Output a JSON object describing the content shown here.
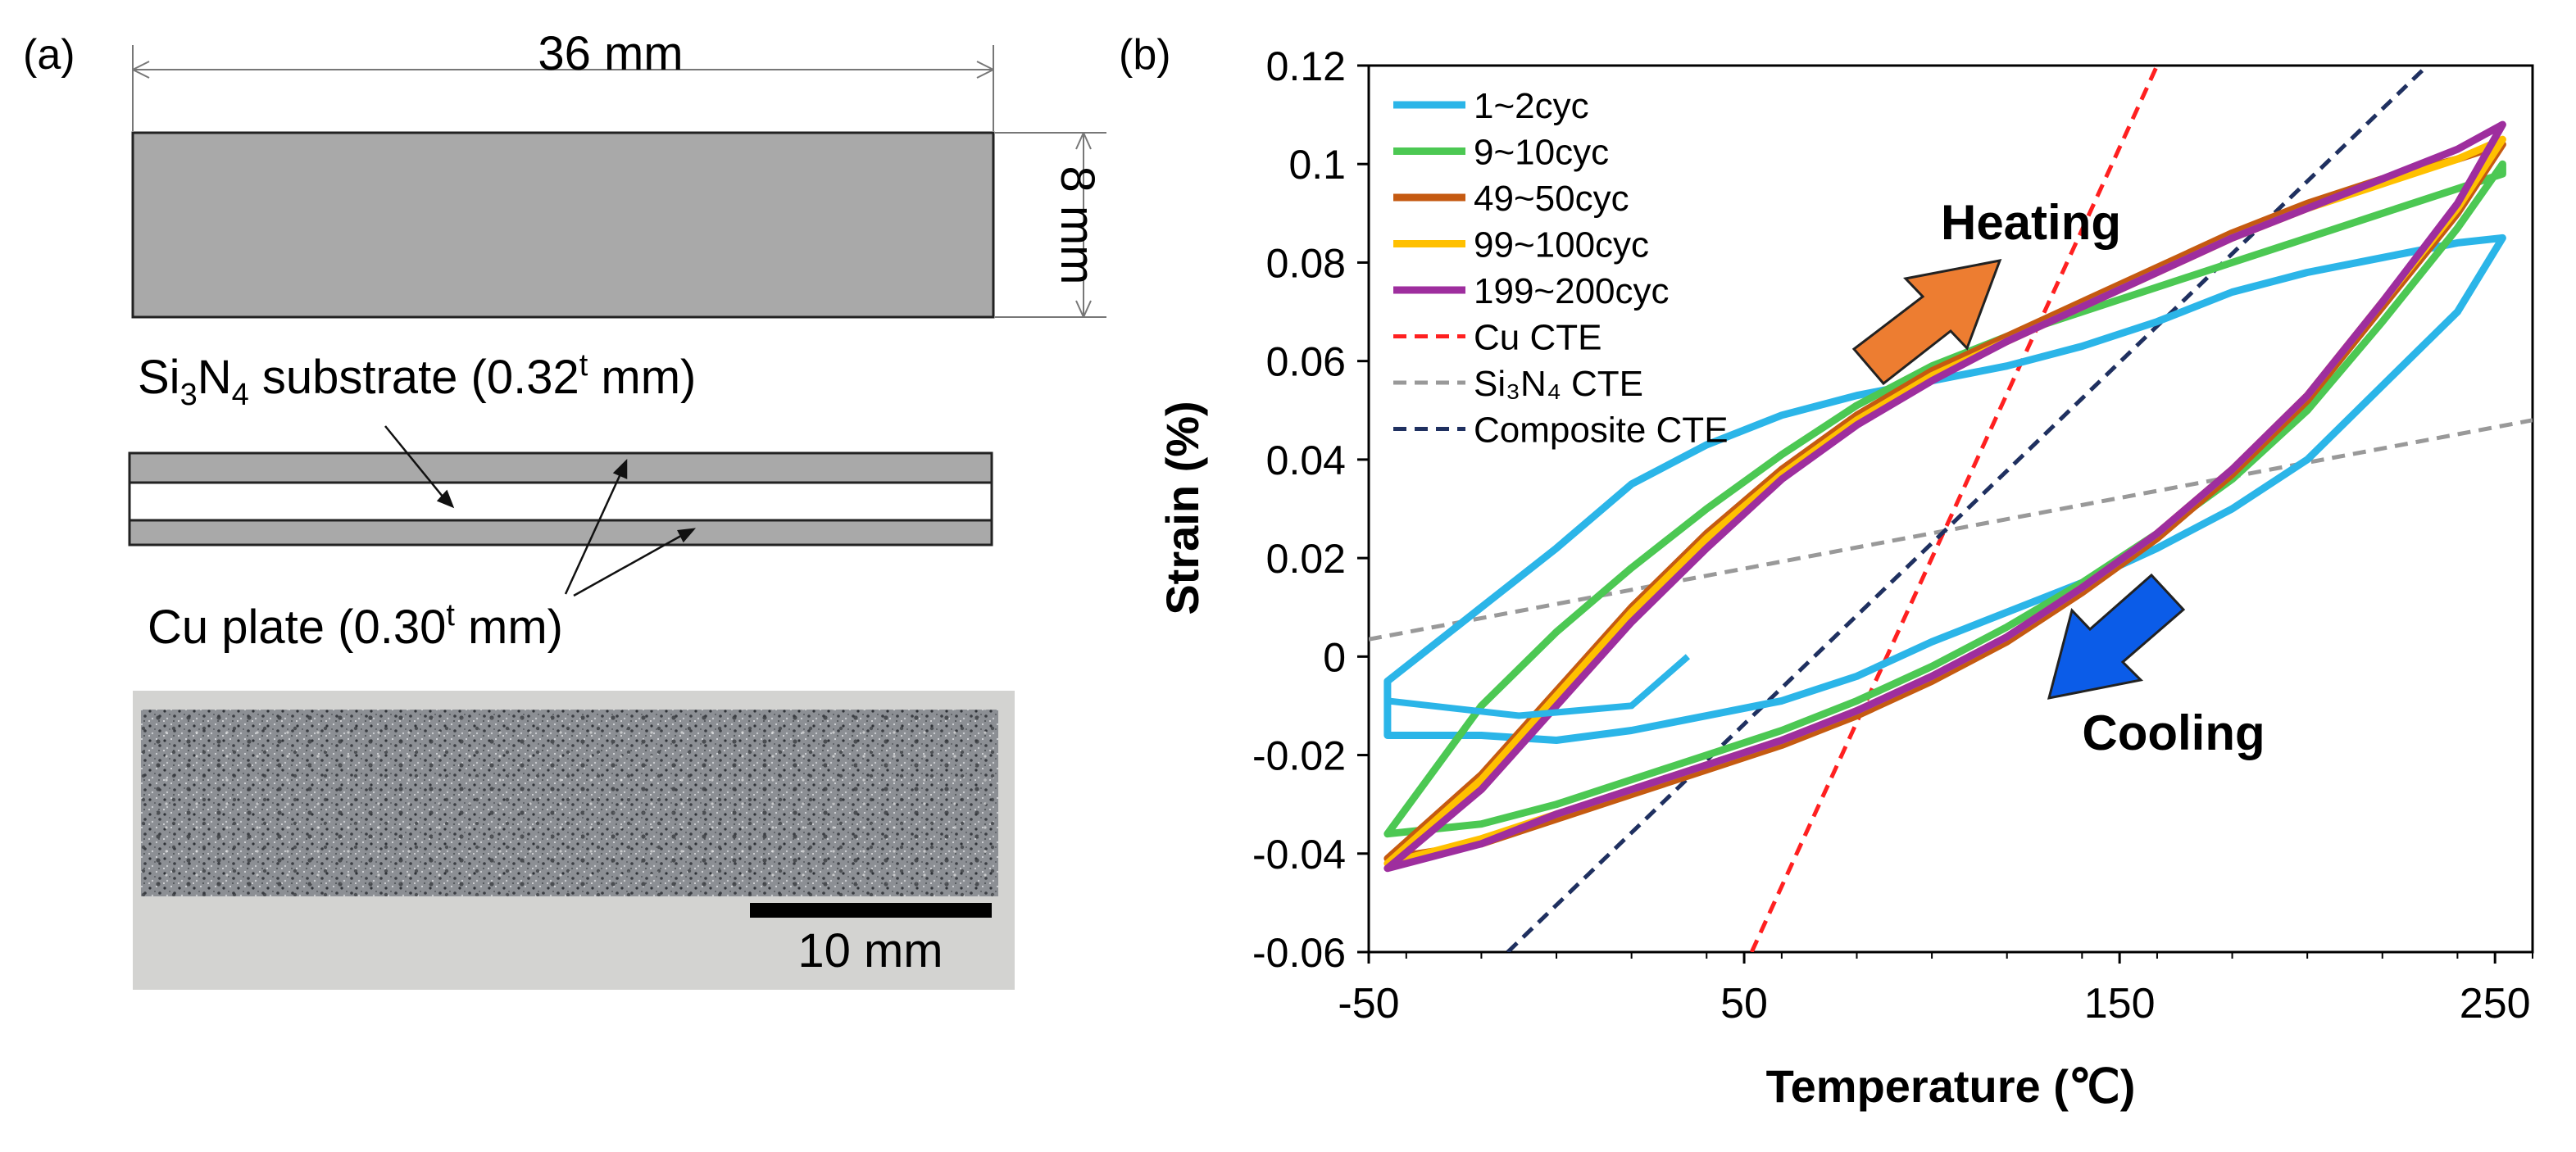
{
  "panel_a": {
    "label": "(a)",
    "width_dim": "36 mm",
    "height_dim": "8 mm",
    "substrate_label": {
      "prefix": "Si",
      "sub1": "3",
      "mid": "N",
      "sub2": "4",
      "rest": " substrate (0.32",
      "sup": "t",
      "end": " mm)"
    },
    "cu_label": {
      "prefix": "Cu plate (0.30",
      "sup": "t",
      "end": " mm)"
    },
    "scale_bar": "10 mm"
  },
  "panel_b": {
    "label": "(b)",
    "heating": "Heating",
    "cooling": "Cooling",
    "heating_color": "#ED7D31",
    "cooling_color": "#0B5CE8"
  },
  "chart_data": {
    "type": "line",
    "title": "",
    "xlabel": "Temperature (℃)",
    "ylabel": "Strain (%)",
    "xlim": [
      -50,
      260
    ],
    "ylim": [
      -0.06,
      0.12
    ],
    "xticks": [
      "-50",
      "50",
      "150",
      "250"
    ],
    "yticks": [
      "0.12",
      "0.1",
      "0.08",
      "0.06",
      "0.04",
      "0.02",
      "0",
      "-0.02",
      "-0.04",
      "-0.06"
    ],
    "grid": false,
    "legend_position": "top-left",
    "series": [
      {
        "name": "1~2cyc",
        "color": "#2BB5E8",
        "style": "solid",
        "heating": [
          [
            -45,
            -0.005
          ],
          [
            -20,
            0.01
          ],
          [
            0,
            0.022
          ],
          [
            20,
            0.035
          ],
          [
            40,
            0.043
          ],
          [
            60,
            0.049
          ],
          [
            80,
            0.053
          ],
          [
            100,
            0.056
          ],
          [
            120,
            0.059
          ],
          [
            140,
            0.063
          ],
          [
            160,
            0.068
          ],
          [
            180,
            0.074
          ],
          [
            200,
            0.078
          ],
          [
            220,
            0.081
          ],
          [
            240,
            0.084
          ],
          [
            252,
            0.085
          ]
        ],
        "cooling": [
          [
            252,
            0.085
          ],
          [
            240,
            0.07
          ],
          [
            220,
            0.055
          ],
          [
            200,
            0.04
          ],
          [
            180,
            0.03
          ],
          [
            160,
            0.022
          ],
          [
            140,
            0.015
          ],
          [
            120,
            0.009
          ],
          [
            100,
            0.003
          ],
          [
            80,
            -0.004
          ],
          [
            60,
            -0.009
          ],
          [
            40,
            -0.012
          ],
          [
            20,
            -0.015
          ],
          [
            0,
            -0.017
          ],
          [
            -20,
            -0.016
          ],
          [
            -45,
            -0.016
          ]
        ]
      },
      {
        "name": "9~10cyc",
        "color": "#4CC853",
        "style": "solid",
        "heating": [
          [
            -45,
            -0.036
          ],
          [
            -20,
            -0.01
          ],
          [
            0,
            0.005
          ],
          [
            20,
            0.018
          ],
          [
            40,
            0.03
          ],
          [
            60,
            0.041
          ],
          [
            80,
            0.051
          ],
          [
            100,
            0.059
          ],
          [
            120,
            0.065
          ],
          [
            140,
            0.07
          ],
          [
            160,
            0.075
          ],
          [
            180,
            0.08
          ],
          [
            200,
            0.085
          ],
          [
            220,
            0.09
          ],
          [
            240,
            0.095
          ],
          [
            252,
            0.098
          ]
        ],
        "cooling": [
          [
            252,
            0.1
          ],
          [
            240,
            0.087
          ],
          [
            220,
            0.068
          ],
          [
            200,
            0.05
          ],
          [
            180,
            0.036
          ],
          [
            160,
            0.025
          ],
          [
            140,
            0.015
          ],
          [
            120,
            0.006
          ],
          [
            100,
            -0.002
          ],
          [
            80,
            -0.009
          ],
          [
            60,
            -0.015
          ],
          [
            40,
            -0.02
          ],
          [
            20,
            -0.025
          ],
          [
            0,
            -0.03
          ],
          [
            -20,
            -0.034
          ],
          [
            -45,
            -0.036
          ]
        ]
      },
      {
        "name": "49~50cyc",
        "color": "#C55A11",
        "style": "solid",
        "heating": [
          [
            -45,
            -0.041
          ],
          [
            -20,
            -0.024
          ],
          [
            0,
            -0.007
          ],
          [
            20,
            0.01
          ],
          [
            40,
            0.025
          ],
          [
            60,
            0.038
          ],
          [
            80,
            0.049
          ],
          [
            100,
            0.058
          ],
          [
            120,
            0.065
          ],
          [
            140,
            0.072
          ],
          [
            160,
            0.079
          ],
          [
            180,
            0.086
          ],
          [
            200,
            0.092
          ],
          [
            220,
            0.097
          ],
          [
            240,
            0.101
          ],
          [
            252,
            0.104
          ]
        ],
        "cooling": [
          [
            252,
            0.104
          ],
          [
            240,
            0.09
          ],
          [
            220,
            0.071
          ],
          [
            200,
            0.052
          ],
          [
            180,
            0.037
          ],
          [
            160,
            0.024
          ],
          [
            140,
            0.013
          ],
          [
            120,
            0.003
          ],
          [
            100,
            -0.005
          ],
          [
            80,
            -0.012
          ],
          [
            60,
            -0.018
          ],
          [
            40,
            -0.023
          ],
          [
            20,
            -0.028
          ],
          [
            0,
            -0.033
          ],
          [
            -20,
            -0.038
          ],
          [
            -45,
            -0.041
          ]
        ]
      },
      {
        "name": "99~100cyc",
        "color": "#FFC000",
        "style": "solid",
        "heating": [
          [
            -45,
            -0.042
          ],
          [
            -20,
            -0.025
          ],
          [
            0,
            -0.008
          ],
          [
            20,
            0.009
          ],
          [
            40,
            0.024
          ],
          [
            60,
            0.037
          ],
          [
            80,
            0.048
          ],
          [
            100,
            0.057
          ],
          [
            120,
            0.064
          ],
          [
            140,
            0.071
          ],
          [
            160,
            0.078
          ],
          [
            180,
            0.085
          ],
          [
            200,
            0.091
          ],
          [
            220,
            0.096
          ],
          [
            240,
            0.101
          ],
          [
            252,
            0.105
          ]
        ],
        "cooling": [
          [
            252,
            0.105
          ],
          [
            240,
            0.091
          ],
          [
            220,
            0.072
          ],
          [
            200,
            0.053
          ],
          [
            180,
            0.038
          ],
          [
            160,
            0.025
          ],
          [
            140,
            0.014
          ],
          [
            120,
            0.004
          ],
          [
            100,
            -0.004
          ],
          [
            80,
            -0.011
          ],
          [
            60,
            -0.017
          ],
          [
            40,
            -0.022
          ],
          [
            20,
            -0.027
          ],
          [
            0,
            -0.032
          ],
          [
            -20,
            -0.037
          ],
          [
            -45,
            -0.042
          ]
        ]
      },
      {
        "name": "199~200cyc",
        "color": "#9E2E9E",
        "style": "solid",
        "heating": [
          [
            -45,
            -0.043
          ],
          [
            -20,
            -0.027
          ],
          [
            0,
            -0.01
          ],
          [
            20,
            0.007
          ],
          [
            40,
            0.022
          ],
          [
            60,
            0.036
          ],
          [
            80,
            0.047
          ],
          [
            100,
            0.056
          ],
          [
            120,
            0.064
          ],
          [
            140,
            0.071
          ],
          [
            160,
            0.078
          ],
          [
            180,
            0.085
          ],
          [
            200,
            0.091
          ],
          [
            220,
            0.097
          ],
          [
            240,
            0.103
          ],
          [
            252,
            0.108
          ]
        ],
        "cooling": [
          [
            252,
            0.108
          ],
          [
            240,
            0.092
          ],
          [
            220,
            0.072
          ],
          [
            200,
            0.053
          ],
          [
            180,
            0.038
          ],
          [
            160,
            0.025
          ],
          [
            140,
            0.014
          ],
          [
            120,
            0.004
          ],
          [
            100,
            -0.004
          ],
          [
            80,
            -0.011
          ],
          [
            60,
            -0.017
          ],
          [
            40,
            -0.022
          ],
          [
            20,
            -0.027
          ],
          [
            0,
            -0.032
          ],
          [
            -20,
            -0.038
          ],
          [
            -45,
            -0.043
          ]
        ]
      },
      {
        "name": "Cu CTE",
        "color": "#FF2020",
        "style": "dashed",
        "points": [
          [
            52,
            -0.06
          ],
          [
            160,
            0.12
          ]
        ]
      },
      {
        "name": "Si₃N₄ CTE",
        "color": "#999999",
        "style": "dashed",
        "points": [
          [
            -50,
            0.0035
          ],
          [
            260,
            0.048
          ]
        ]
      },
      {
        "name": "Composite CTE",
        "color": "#1F3060",
        "style": "dashed",
        "points": [
          [
            -13,
            -0.06
          ],
          [
            232,
            0.12
          ]
        ]
      }
    ]
  }
}
